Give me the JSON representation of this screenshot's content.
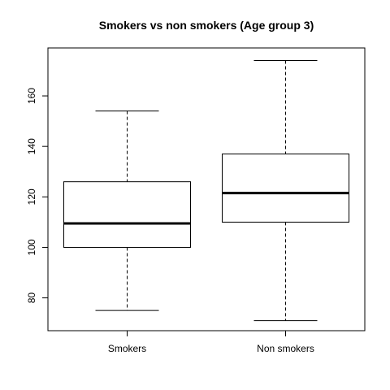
{
  "chart_data": {
    "type": "box",
    "title": "Smokers vs non smokers (Age group 3)",
    "xlabel": "",
    "ylabel": "",
    "categories": [
      "Smokers",
      "Non smokers"
    ],
    "boxes": [
      {
        "category": "Smokers",
        "min": 75,
        "q1": 100,
        "median": 109.5,
        "q3": 126,
        "max": 154
      },
      {
        "category": "Non smokers",
        "min": 71,
        "q1": 110,
        "median": 121.5,
        "q3": 137,
        "max": 174
      }
    ],
    "ylim": [
      67,
      179
    ],
    "yticks": [
      80,
      100,
      120,
      140,
      160
    ],
    "grid": false,
    "colors": {
      "box_fill": "#ffffff",
      "stroke": "#000000",
      "background": "#ffffff"
    }
  }
}
